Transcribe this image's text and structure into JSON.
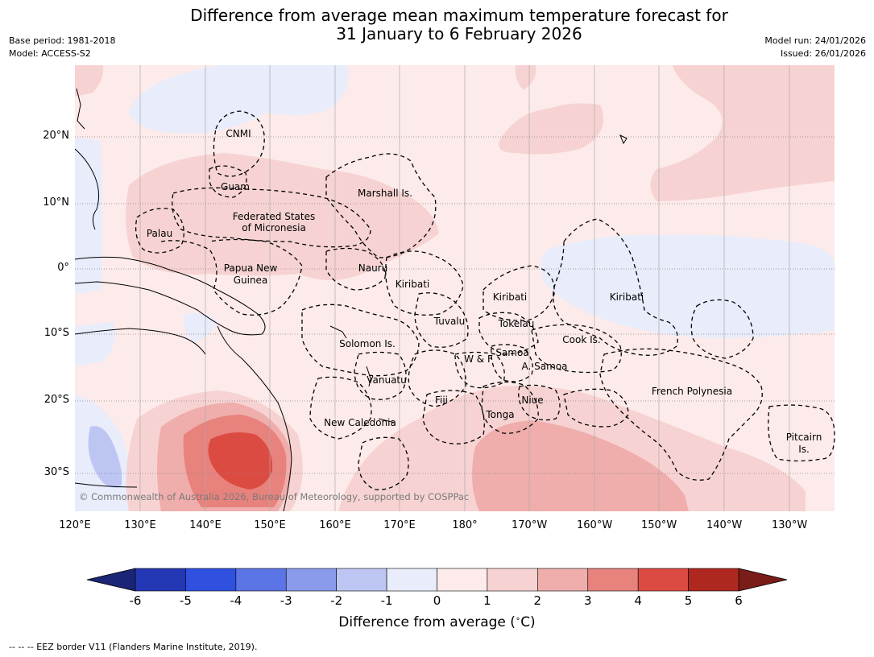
{
  "title_line1": "Difference from average mean maximum temperature forecast for",
  "title_line2": "31 January to 6 February 2026",
  "base_period": "Base period: 1981-2018",
  "model": "Model: ACCESS-S2",
  "model_run": "Model run: 24/01/2026",
  "issued": "Issued: 26/01/2026",
  "copyright": "© Commonwealth of Australia 2026, Bureau of Meteorology, supported by COSPPac",
  "map": {
    "lon_ticks": [
      "120°E",
      "130°E",
      "140°E",
      "150°E",
      "160°E",
      "170°E",
      "180°",
      "170°W",
      "160°W",
      "150°W",
      "140°W",
      "130°W"
    ],
    "lat_ticks": [
      "20°N",
      "10°N",
      "0°",
      "10°S",
      "20°S",
      "30°S"
    ]
  },
  "regions": [
    {
      "label": "CNMI"
    },
    {
      "label": "Guam"
    },
    {
      "label": "Marshall Is."
    },
    {
      "label": "Federated States"
    },
    {
      "label": "of Micronesia"
    },
    {
      "label": "Palau"
    },
    {
      "label": "Papua New"
    },
    {
      "label": "Guinea"
    },
    {
      "label": "Nauru"
    },
    {
      "label": "Kiribati"
    },
    {
      "label": "Kiribati"
    },
    {
      "label": "Kiribati"
    },
    {
      "label": "Tuvalu"
    },
    {
      "label": "Tokelau"
    },
    {
      "label": "Cook Is."
    },
    {
      "label": "Solomon Is."
    },
    {
      "label": "W & F"
    },
    {
      "label": "Samoa"
    },
    {
      "label": "A. Samoa"
    },
    {
      "label": "Vanuatu"
    },
    {
      "label": "Fiji"
    },
    {
      "label": "Niue"
    },
    {
      "label": "Tonga"
    },
    {
      "label": "French Polynesia"
    },
    {
      "label": "New Caledonia"
    },
    {
      "label": "Pitcairn"
    },
    {
      "label": "Is."
    }
  ],
  "colorbar": {
    "ticks": [
      "-6",
      "-5",
      "-4",
      "-3",
      "-2",
      "-1",
      "0",
      "1",
      "2",
      "3",
      "4",
      "5",
      "6"
    ],
    "colors": [
      "#2437b4",
      "#3050e0",
      "#5b74e6",
      "#8a9bec",
      "#bdc6f3",
      "#e8ecfb",
      "#fcebea",
      "#f6d3d2",
      "#efadab",
      "#e8827d",
      "#dc4b42",
      "#ae2820"
    ],
    "under_color": "#1a2675",
    "over_color": "#7a1c17",
    "label": "Difference from average ($^\\circ$C)"
  },
  "footer": "--  --  -- EEZ border V11 (Flanders Marine Institute, 2019)."
}
